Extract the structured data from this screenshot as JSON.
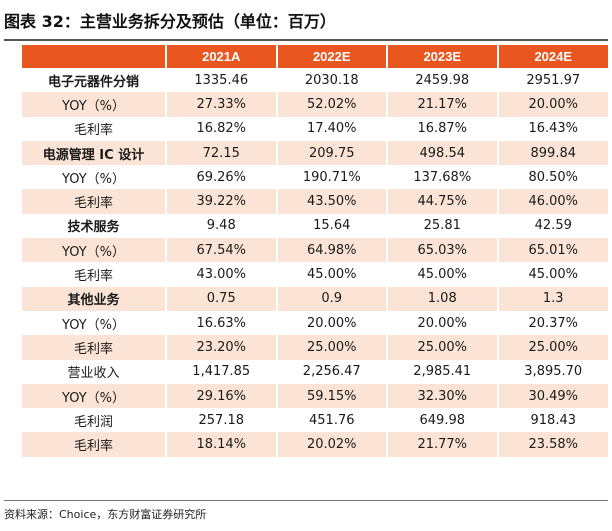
{
  "title": "图表 32：主营业务拆分及预估（单位：百万）",
  "columns": [
    "",
    "2021A",
    "2022E",
    "2023E",
    "2024E"
  ],
  "rows": [
    {
      "label": "电子元器件分销",
      "values": [
        "1335.46",
        "2030.18",
        "2459.98",
        "2951.97"
      ],
      "category": true,
      "shaded": false
    },
    {
      "label": "YOY（%）",
      "values": [
        "27.33%",
        "52.02%",
        "21.17%",
        "20.00%"
      ],
      "category": false,
      "shaded": true
    },
    {
      "label": "毛利率",
      "values": [
        "16.82%",
        "17.40%",
        "16.87%",
        "16.43%"
      ],
      "category": false,
      "shaded": false
    },
    {
      "label": "电源管理 IC 设计",
      "values": [
        "72.15",
        "209.75",
        "498.54",
        "899.84"
      ],
      "category": true,
      "shaded": true
    },
    {
      "label": "YOY（%）",
      "values": [
        "69.26%",
        "190.71%",
        "137.68%",
        "80.50%"
      ],
      "category": false,
      "shaded": false
    },
    {
      "label": "毛利率",
      "values": [
        "39.22%",
        "43.50%",
        "44.75%",
        "46.00%"
      ],
      "category": false,
      "shaded": true
    },
    {
      "label": "技术服务",
      "values": [
        "9.48",
        "15.64",
        "25.81",
        "42.59"
      ],
      "category": true,
      "shaded": false
    },
    {
      "label": "YOY（%）",
      "values": [
        "67.54%",
        "64.98%",
        "65.03%",
        "65.01%"
      ],
      "category": false,
      "shaded": true
    },
    {
      "label": "毛利率",
      "values": [
        "43.00%",
        "45.00%",
        "45.00%",
        "45.00%"
      ],
      "category": false,
      "shaded": false
    },
    {
      "label": "其他业务",
      "values": [
        "0.75",
        "0.9",
        "1.08",
        "1.3"
      ],
      "category": true,
      "shaded": true
    },
    {
      "label": "YOY（%）",
      "values": [
        "16.63%",
        "20.00%",
        "20.00%",
        "20.37%"
      ],
      "category": false,
      "shaded": false
    },
    {
      "label": "毛利率",
      "values": [
        "23.20%",
        "25.00%",
        "25.00%",
        "25.00%"
      ],
      "category": false,
      "shaded": true
    },
    {
      "label": "营业收入",
      "values": [
        "1,417.85",
        "2,256.47",
        "2,985.41",
        "3,895.70"
      ],
      "category": false,
      "shaded": false
    },
    {
      "label": "YOY（%）",
      "values": [
        "29.16%",
        "59.15%",
        "32.30%",
        "30.49%"
      ],
      "category": false,
      "shaded": true
    },
    {
      "label": "毛利润",
      "values": [
        "257.18",
        "451.76",
        "649.98",
        "918.43"
      ],
      "category": false,
      "shaded": false
    },
    {
      "label": "毛利率",
      "values": [
        "18.14%",
        "20.02%",
        "21.77%",
        "23.58%"
      ],
      "category": false,
      "shaded": true
    }
  ],
  "source": "资料来源：Choice，东方财富证券研究所",
  "colors": {
    "header": "#e9561f",
    "shade": "#fbe4d5",
    "header_text": "#ffffff"
  }
}
